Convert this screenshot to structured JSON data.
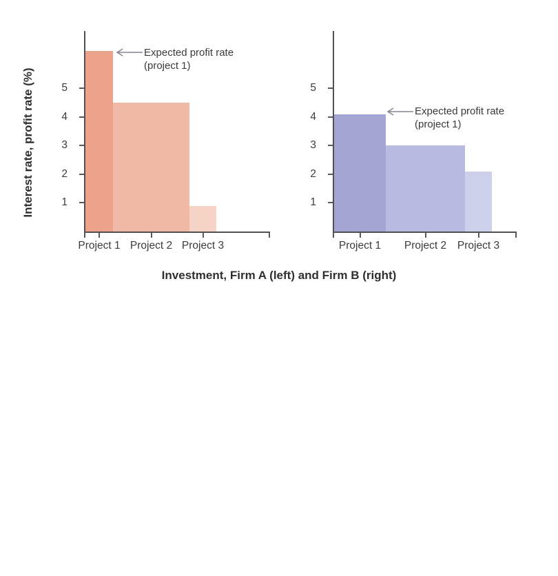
{
  "figure": {
    "y_axis_title": "Interest rate, profit rate (%)",
    "x_axis_title": "Investment, Firm A (left) and Firm B (right)"
  },
  "annotation": {
    "line1": "Expected profit rate",
    "line2": "(project 1)"
  },
  "colors": {
    "axis": "#505053",
    "tick_text": "#3b3b3b",
    "title_text": "#2f2f2f",
    "arrow": "#84848d"
  },
  "chart_data": [
    {
      "type": "bar",
      "name": "Firm A (left)",
      "categories": [
        "Project 1",
        "Project 2",
        "Project 3"
      ],
      "values": [
        6.3,
        4.5,
        0.9
      ],
      "bar_width_fractions": [
        0.149,
        0.414,
        0.146
      ],
      "colors": [
        "#ECA28B",
        "#F0B9A6",
        "#F5D3C5"
      ],
      "y_ticks": [
        1,
        2,
        3,
        4,
        5
      ],
      "ylim": [
        0,
        7
      ],
      "grid": false,
      "annotation": {
        "line1": "Expected profit rate",
        "line2": "(project 1)",
        "target": "Project 1"
      }
    },
    {
      "type": "bar",
      "name": "Firm B (right)",
      "categories": [
        "Project 1",
        "Project 2",
        "Project 3"
      ],
      "values": [
        4.1,
        3.0,
        2.1
      ],
      "bar_width_fractions": [
        0.283,
        0.434,
        0.147
      ],
      "colors": [
        "#A3A5D3",
        "#B8BADF",
        "#CDD0EA"
      ],
      "y_ticks": [
        1,
        2,
        3,
        4,
        5
      ],
      "ylim": [
        0,
        7
      ],
      "grid": false,
      "annotation": {
        "line1": "Expected profit rate",
        "line2": "(project 1)",
        "target": "Project 1"
      }
    }
  ]
}
